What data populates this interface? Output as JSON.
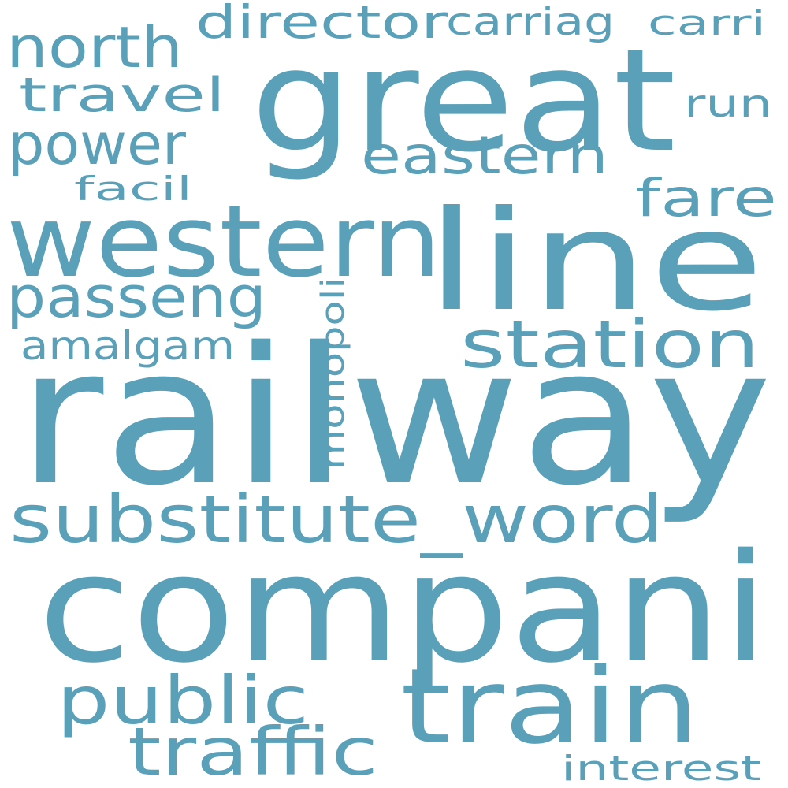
{
  "colors": {
    "background": "#ffffff",
    "word": "#5ba0b9"
  },
  "words": {
    "railway": "railway",
    "compani": "compani",
    "great": "great",
    "line": "line",
    "western": "western",
    "train": "train",
    "substitute_word": "substitute_word",
    "station": "station",
    "public": "public",
    "traffic": "traffic",
    "north": "north",
    "power": "power",
    "passeng": "passeng",
    "eastern": "eastern",
    "fare": "fare",
    "travel": "travel",
    "director": "director",
    "amalgam": "amalgam",
    "carriag": "carriag",
    "carri": "carri",
    "run": "run",
    "facil": "facil",
    "monopoli": "monopoli",
    "interest": "interest"
  }
}
